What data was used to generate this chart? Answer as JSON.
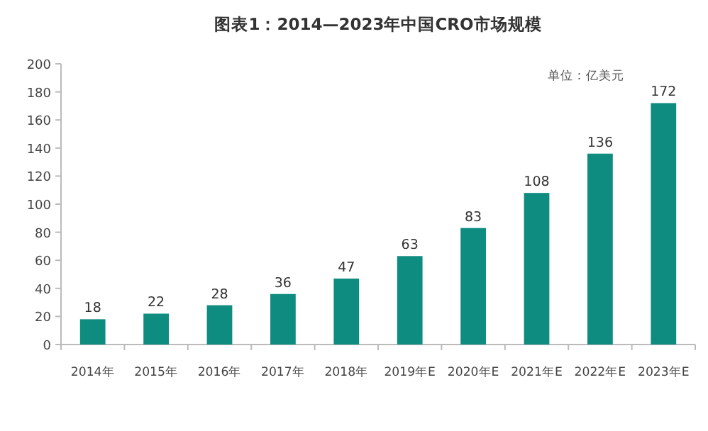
{
  "chart_data": {
    "type": "bar",
    "title": "图表1：2014—2023年中国CRO市场规模",
    "categories": [
      "2014年",
      "2015年",
      "2016年",
      "2017年",
      "2018年",
      "2019年E",
      "2020年E",
      "2021年E",
      "2022年E",
      "2023年E"
    ],
    "values": [
      18,
      22,
      28,
      36,
      47,
      63,
      83,
      108,
      136,
      172
    ],
    "color": "#0f8c80",
    "ylim": [
      0,
      200
    ],
    "yticks": [
      0,
      20,
      40,
      60,
      80,
      100,
      120,
      140,
      160,
      180,
      200
    ],
    "data_labels": true,
    "annotations": [
      "单位：亿美元"
    ]
  }
}
